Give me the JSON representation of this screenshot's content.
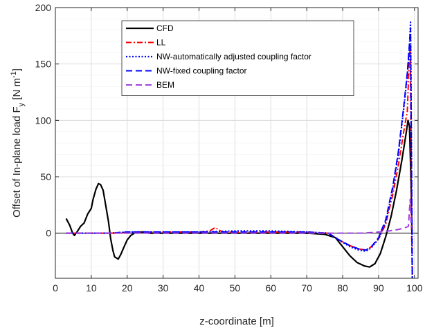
{
  "chart_data": {
    "type": "line",
    "xlabel": "z-coordinate [m]",
    "ylabel_main": "Offset of In-plane load F",
    "ylabel_sub": "y",
    "ylabel_unit_pre": " [N m",
    "ylabel_unit_sup": "-1",
    "ylabel_unit_post": "]",
    "xlim": [
      0,
      101
    ],
    "ylim": [
      -40,
      200
    ],
    "xticks": [
      0,
      10,
      20,
      30,
      40,
      50,
      60,
      70,
      80,
      90,
      100
    ],
    "yticks": [
      0,
      50,
      100,
      150,
      200
    ],
    "grid": true,
    "legend_position": "upper-center",
    "series": [
      {
        "name": "CFD",
        "color": "#000000",
        "dash": "solid",
        "width": 2.2,
        "points": [
          [
            3,
            13
          ],
          [
            4,
            7
          ],
          [
            4.8,
            0
          ],
          [
            5.3,
            -2
          ],
          [
            6,
            1
          ],
          [
            7,
            6
          ],
          [
            8,
            9
          ],
          [
            9,
            17
          ],
          [
            10,
            22
          ],
          [
            10.5,
            30
          ],
          [
            11.3,
            39
          ],
          [
            12,
            44
          ],
          [
            12.6,
            43
          ],
          [
            13.3,
            38
          ],
          [
            14,
            25
          ],
          [
            14.8,
            10
          ],
          [
            15.4,
            -5
          ],
          [
            16,
            -15
          ],
          [
            16.5,
            -21
          ],
          [
            17,
            -22
          ],
          [
            17.5,
            -23
          ],
          [
            18.2,
            -19
          ],
          [
            19,
            -13
          ],
          [
            20,
            -6
          ],
          [
            21,
            -2
          ],
          [
            22,
            0
          ],
          [
            23,
            1
          ],
          [
            25,
            1
          ],
          [
            26,
            0
          ],
          [
            28,
            0
          ],
          [
            30,
            0
          ],
          [
            40,
            0
          ],
          [
            50,
            0
          ],
          [
            60,
            0
          ],
          [
            70,
            0
          ],
          [
            75,
            -1
          ],
          [
            78,
            -4
          ],
          [
            80,
            -12
          ],
          [
            82,
            -20
          ],
          [
            84,
            -26
          ],
          [
            86,
            -29
          ],
          [
            87.5,
            -30
          ],
          [
            89,
            -27
          ],
          [
            90.5,
            -18
          ],
          [
            92,
            -3
          ],
          [
            93.5,
            15
          ],
          [
            95,
            38
          ],
          [
            96.5,
            65
          ],
          [
            97.5,
            85
          ],
          [
            98.2,
            100
          ],
          [
            98.6,
            95
          ],
          [
            99,
            50
          ],
          [
            99.3,
            0
          ]
        ]
      },
      {
        "name": "LL",
        "color": "#ff0000",
        "dash": "dashdot",
        "width": 2,
        "points": [
          [
            3,
            0
          ],
          [
            10,
            0
          ],
          [
            15,
            0
          ],
          [
            18,
            0
          ],
          [
            20,
            1
          ],
          [
            25,
            1
          ],
          [
            30,
            1
          ],
          [
            40,
            1
          ],
          [
            43,
            2
          ],
          [
            44.5,
            5
          ],
          [
            46,
            2
          ],
          [
            47,
            1
          ],
          [
            60,
            1
          ],
          [
            70,
            1
          ],
          [
            76,
            0
          ],
          [
            79,
            -6
          ],
          [
            82,
            -11
          ],
          [
            84.5,
            -14
          ],
          [
            86.5,
            -15
          ],
          [
            88,
            -12
          ],
          [
            90,
            -5
          ],
          [
            92,
            8
          ],
          [
            94,
            35
          ],
          [
            95.5,
            60
          ],
          [
            97,
            90
          ],
          [
            98,
            108
          ],
          [
            98.5,
            150
          ],
          [
            98.8,
            165
          ],
          [
            99,
            100
          ],
          [
            99.2,
            0
          ],
          [
            99.4,
            -40
          ]
        ]
      },
      {
        "name": "NW-automatically adjusted coupling factor",
        "color": "#0000ff",
        "dash": "dotted",
        "width": 2.2,
        "points": [
          [
            3,
            0
          ],
          [
            10,
            0
          ],
          [
            15,
            0
          ],
          [
            20,
            1
          ],
          [
            30,
            1
          ],
          [
            40,
            1
          ],
          [
            50,
            2
          ],
          [
            60,
            2
          ],
          [
            70,
            1
          ],
          [
            76,
            0
          ],
          [
            79,
            -6
          ],
          [
            82,
            -12
          ],
          [
            84.5,
            -15
          ],
          [
            86.5,
            -16
          ],
          [
            88,
            -13
          ],
          [
            90,
            -5
          ],
          [
            92,
            10
          ],
          [
            94,
            40
          ],
          [
            95.5,
            70
          ],
          [
            97,
            110
          ],
          [
            98,
            140
          ],
          [
            98.6,
            165
          ],
          [
            98.9,
            187
          ],
          [
            99.1,
            100
          ],
          [
            99.3,
            0
          ],
          [
            99.4,
            -40
          ]
        ]
      },
      {
        "name": "NW-fixed coupling factor",
        "color": "#0000ff",
        "dash": "dashed",
        "width": 2,
        "points": [
          [
            3,
            0
          ],
          [
            10,
            0
          ],
          [
            15,
            0
          ],
          [
            20,
            1
          ],
          [
            30,
            1
          ],
          [
            40,
            1
          ],
          [
            50,
            1
          ],
          [
            60,
            1
          ],
          [
            70,
            1
          ],
          [
            76,
            0
          ],
          [
            79,
            -6
          ],
          [
            82,
            -11
          ],
          [
            84.5,
            -14
          ],
          [
            86.5,
            -15
          ],
          [
            88,
            -12
          ],
          [
            90,
            -4
          ],
          [
            92,
            12
          ],
          [
            94,
            42
          ],
          [
            95.5,
            72
          ],
          [
            97,
            112
          ],
          [
            98,
            142
          ],
          [
            98.6,
            168
          ],
          [
            98.9,
            182
          ],
          [
            99.1,
            90
          ],
          [
            99.3,
            0
          ],
          [
            99.4,
            -40
          ]
        ]
      },
      {
        "name": "BEM",
        "color": "#a040e0",
        "dash": "dashed",
        "width": 2,
        "points": [
          [
            3,
            0
          ],
          [
            10,
            0
          ],
          [
            20,
            0
          ],
          [
            30,
            0
          ],
          [
            40,
            0
          ],
          [
            50,
            0
          ],
          [
            60,
            0
          ],
          [
            70,
            0
          ],
          [
            80,
            0
          ],
          [
            85,
            0
          ],
          [
            90,
            1
          ],
          [
            93,
            2
          ],
          [
            95,
            3
          ],
          [
            96.5,
            4
          ],
          [
            97.5,
            5
          ],
          [
            98.3,
            6
          ],
          [
            98.8,
            30
          ],
          [
            99.1,
            5
          ]
        ]
      }
    ]
  }
}
